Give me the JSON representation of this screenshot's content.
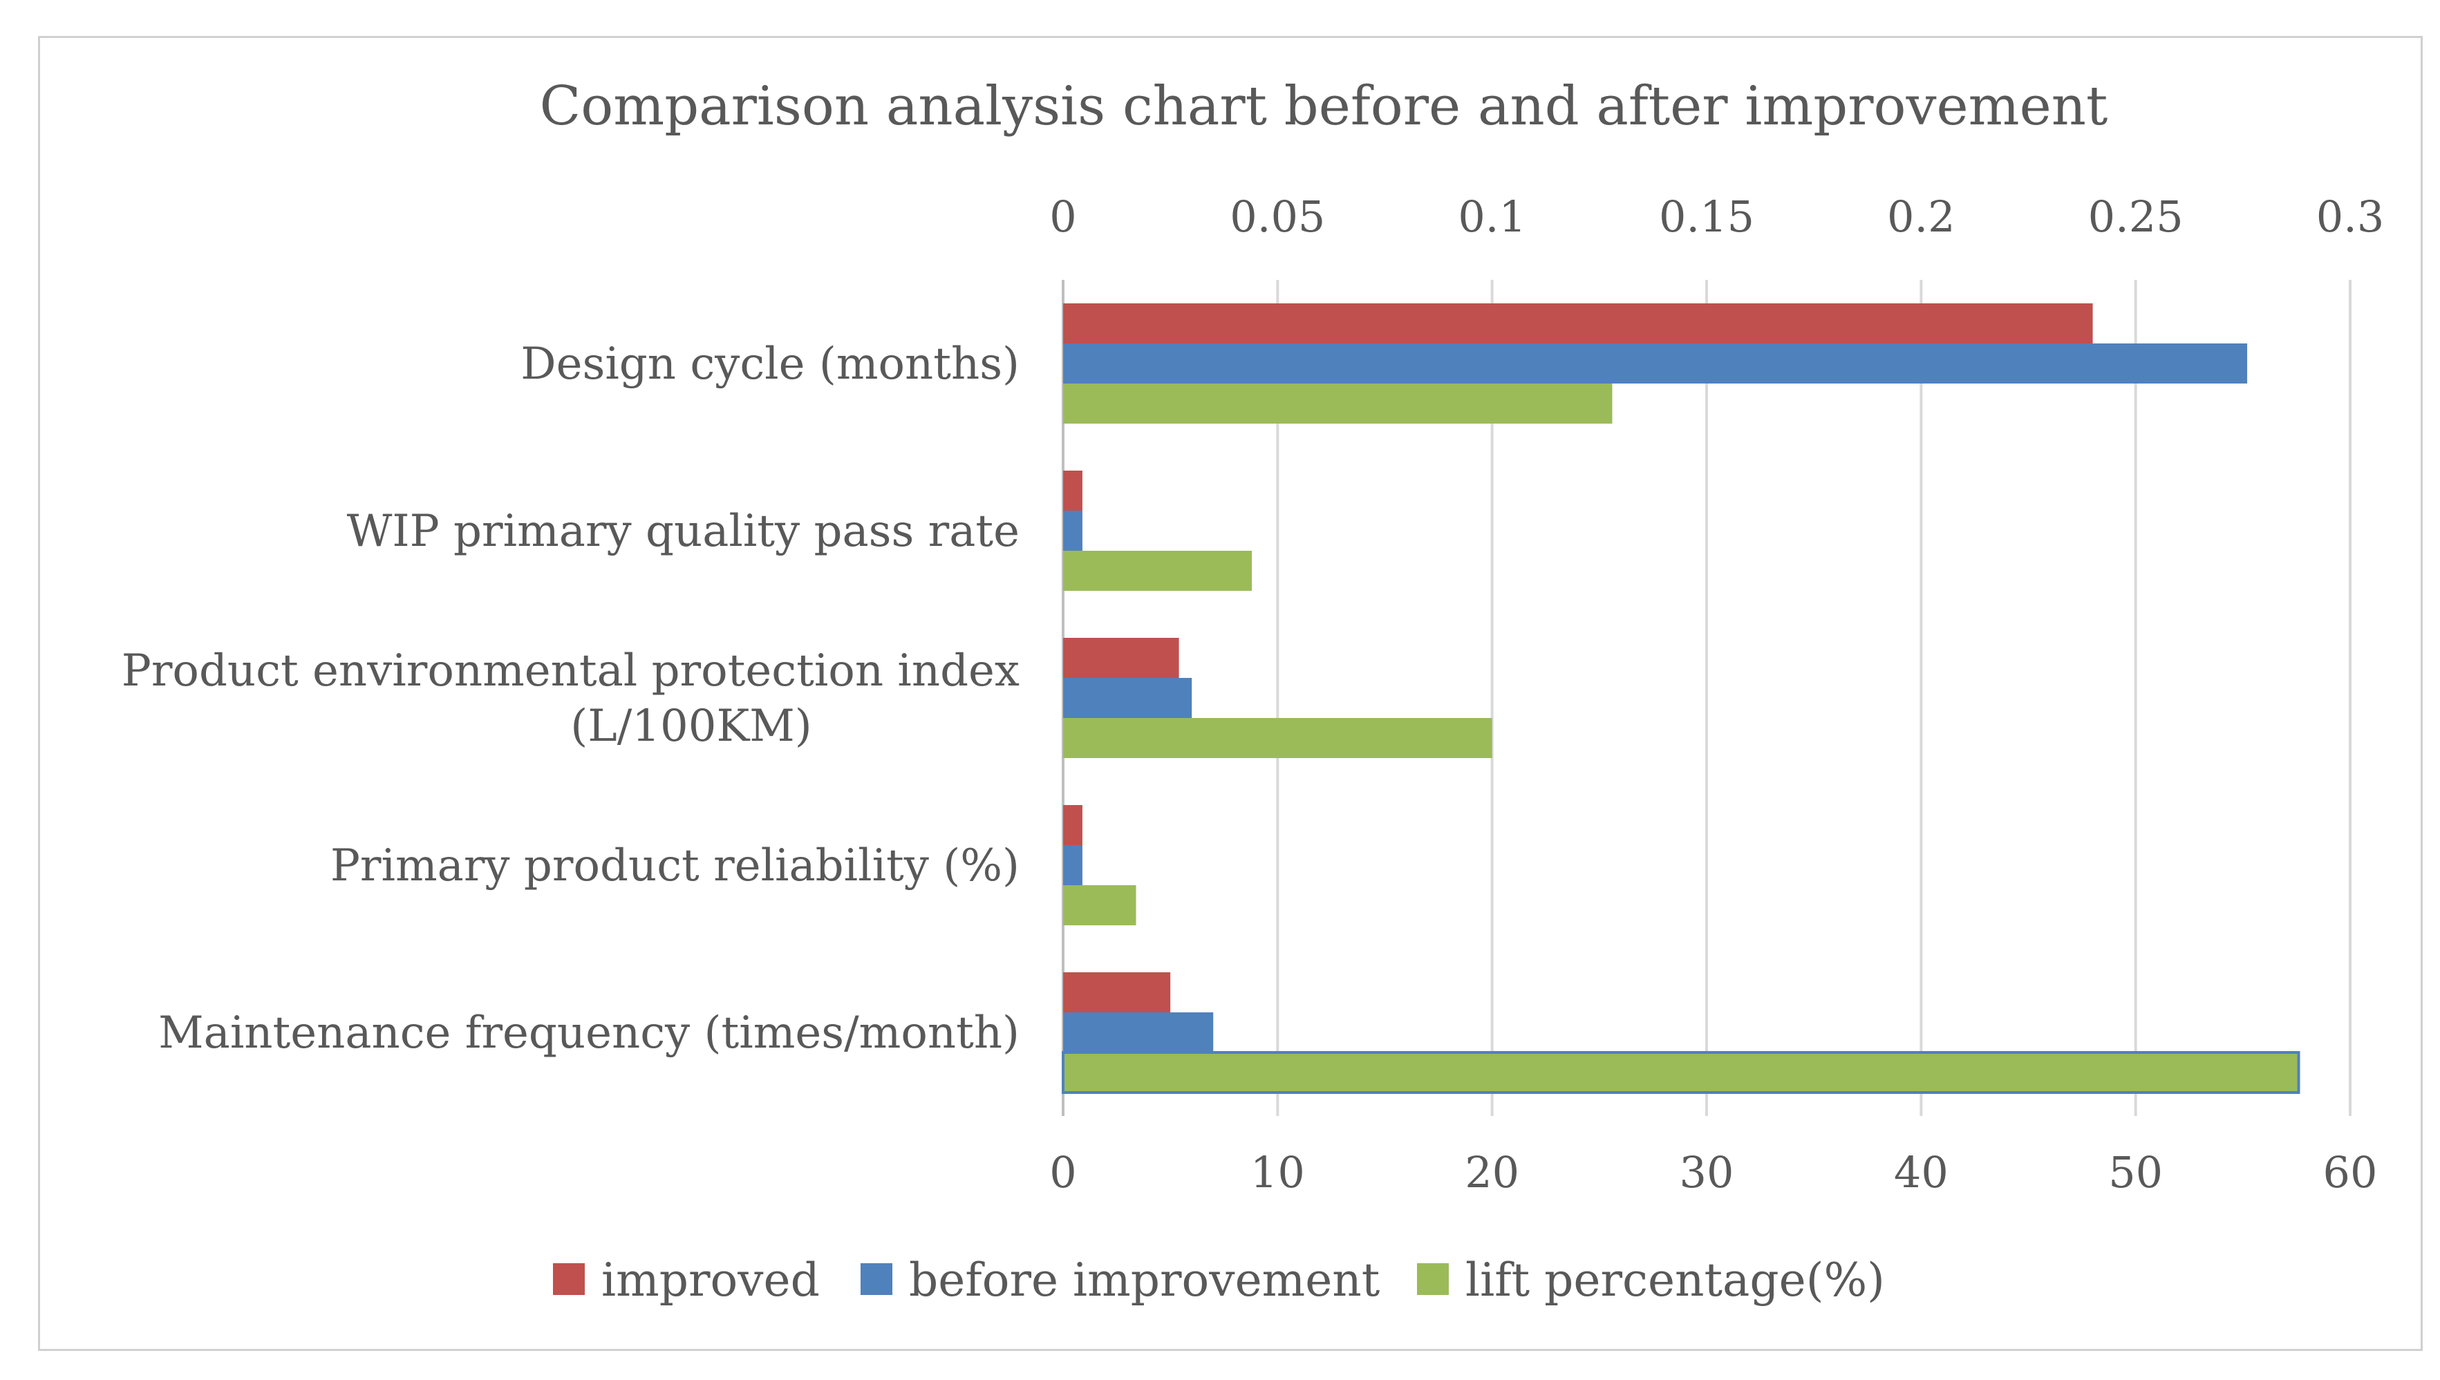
{
  "chart_data": {
    "type": "bar",
    "orientation": "horizontal",
    "title": "Comparison analysis chart before and after improvement",
    "categories": [
      "Design cycle (months)",
      "WIP primary quality pass rate",
      "Product environmental protection index (L/100KM)",
      "Primary product reliability (%)",
      "Maintenance frequency (times/month)"
    ],
    "category_lines": [
      [
        "Design cycle (months)"
      ],
      [
        "WIP primary quality pass rate"
      ],
      [
        "Product environmental protection index",
        "(L/100KM)"
      ],
      [
        "Primary product reliability (%)"
      ],
      [
        "Maintenance frequency (times/month)"
      ]
    ],
    "series": [
      {
        "name": "improved",
        "axis": "bottom",
        "color": "#c0504d",
        "values": [
          48,
          0.9,
          5.4,
          0.9,
          5
        ]
      },
      {
        "name": "before improvement",
        "axis": "bottom",
        "color": "#4f81bd",
        "values": [
          55.2,
          0.9,
          6,
          0.9,
          7
        ]
      },
      {
        "name": "lift percentage(%)",
        "axis": "top",
        "color": "#9bbb59",
        "values": [
          0.128,
          0.044,
          0.1,
          0.017,
          0.288
        ]
      }
    ],
    "x_bottom": {
      "min": 0,
      "max": 60,
      "ticks": [
        "0",
        "10",
        "20",
        "30",
        "40",
        "50",
        "60"
      ]
    },
    "x_top": {
      "min": 0,
      "max": 0.3,
      "ticks": [
        "0",
        "0.05",
        "0.1",
        "0.15",
        "0.2",
        "0.25",
        "0.3"
      ]
    },
    "grid": "vertical",
    "legend": "bottom"
  }
}
